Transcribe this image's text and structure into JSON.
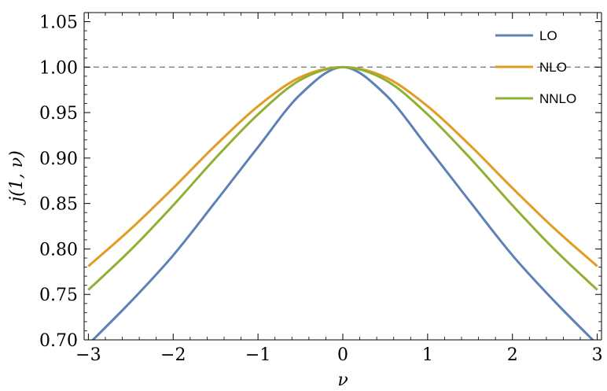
{
  "chart_data": {
    "type": "line",
    "xlabel": "ν",
    "ylabel": "j(1, ν)",
    "xlim": [
      -3.05,
      3.05
    ],
    "ylim": [
      0.7,
      1.06
    ],
    "xticks": [
      -3,
      -2,
      -1,
      0,
      1,
      2,
      3
    ],
    "xtick_labels": [
      "−3",
      "−2",
      "−1",
      "0",
      "1",
      "2",
      "3"
    ],
    "yticks": [
      0.7,
      0.75,
      0.8,
      0.85,
      0.9,
      0.95,
      1.0,
      1.05
    ],
    "ytick_labels": [
      "0.70",
      "0.75",
      "0.80",
      "0.85",
      "0.90",
      "0.95",
      "1.00",
      "1.05"
    ],
    "reference_line": {
      "y": 1.0,
      "style": "dashed",
      "color": "#808080"
    },
    "legend_position": "top-right",
    "x": [
      -3,
      -2.5,
      -2,
      -1.5,
      -1,
      -0.5,
      0,
      0.5,
      1,
      1.5,
      2,
      2.5,
      3
    ],
    "series": [
      {
        "name": "LO",
        "color": "#5e81b5",
        "values": [
          0.695,
          0.742,
          0.793,
          0.852,
          0.912,
          0.97,
          1.0,
          0.97,
          0.912,
          0.852,
          0.793,
          0.742,
          0.695
        ]
      },
      {
        "name": "NLO",
        "color": "#e19c24",
        "values": [
          0.781,
          0.822,
          0.867,
          0.914,
          0.957,
          0.989,
          1.0,
          0.989,
          0.957,
          0.914,
          0.867,
          0.822,
          0.781
        ]
      },
      {
        "name": "NNLO",
        "color": "#8fb032",
        "values": [
          0.755,
          0.799,
          0.848,
          0.9,
          0.948,
          0.986,
          1.0,
          0.986,
          0.948,
          0.9,
          0.848,
          0.799,
          0.755
        ]
      }
    ]
  }
}
